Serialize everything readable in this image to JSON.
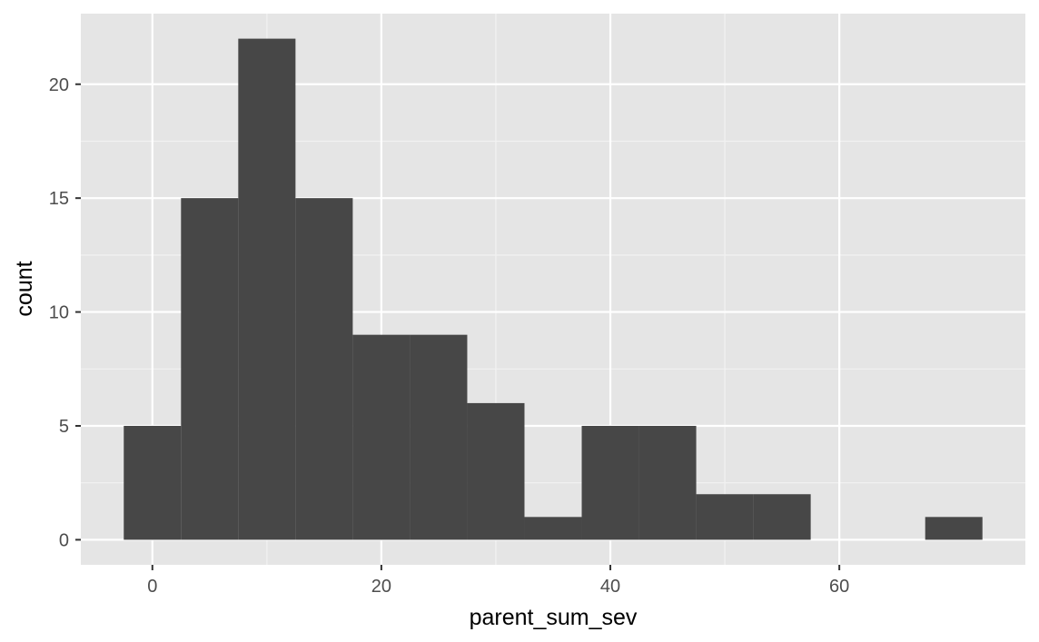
{
  "chart_data": {
    "type": "bar",
    "title": "",
    "xlabel": "parent_sum_sev",
    "ylabel": "count",
    "bin_width": 5,
    "bins": [
      {
        "x_start": -2.5,
        "x_end": 2.5,
        "count": 5
      },
      {
        "x_start": 2.5,
        "x_end": 7.5,
        "count": 15
      },
      {
        "x_start": 7.5,
        "x_end": 12.5,
        "count": 22
      },
      {
        "x_start": 12.5,
        "x_end": 17.5,
        "count": 15
      },
      {
        "x_start": 17.5,
        "x_end": 22.5,
        "count": 9
      },
      {
        "x_start": 22.5,
        "x_end": 27.5,
        "count": 9
      },
      {
        "x_start": 27.5,
        "x_end": 32.5,
        "count": 6
      },
      {
        "x_start": 32.5,
        "x_end": 37.5,
        "count": 1
      },
      {
        "x_start": 37.5,
        "x_end": 42.5,
        "count": 5
      },
      {
        "x_start": 42.5,
        "x_end": 47.5,
        "count": 5
      },
      {
        "x_start": 47.5,
        "x_end": 52.5,
        "count": 2
      },
      {
        "x_start": 52.5,
        "x_end": 57.5,
        "count": 2
      },
      {
        "x_start": 57.5,
        "x_end": 62.5,
        "count": 0
      },
      {
        "x_start": 62.5,
        "x_end": 67.5,
        "count": 0
      },
      {
        "x_start": 67.5,
        "x_end": 72.5,
        "count": 1
      }
    ],
    "xlim": [
      -6.25,
      76.25
    ],
    "ylim": [
      -1.1,
      23.1
    ],
    "x_ticks": [
      0,
      20,
      40,
      60
    ],
    "x_tick_labels": [
      "0",
      "20",
      "40",
      "60"
    ],
    "y_ticks": [
      0,
      5,
      10,
      15,
      20
    ],
    "y_tick_labels": [
      "0",
      "5",
      "10",
      "15",
      "20"
    ],
    "grid": true,
    "colors": {
      "bar_fill": "#474747",
      "panel_background": "#e5e5e5",
      "grid_major": "#ffffff",
      "grid_minor": "#f2f2f2",
      "tick_label": "#4d4d4d",
      "tick_mark": "#333333"
    }
  }
}
